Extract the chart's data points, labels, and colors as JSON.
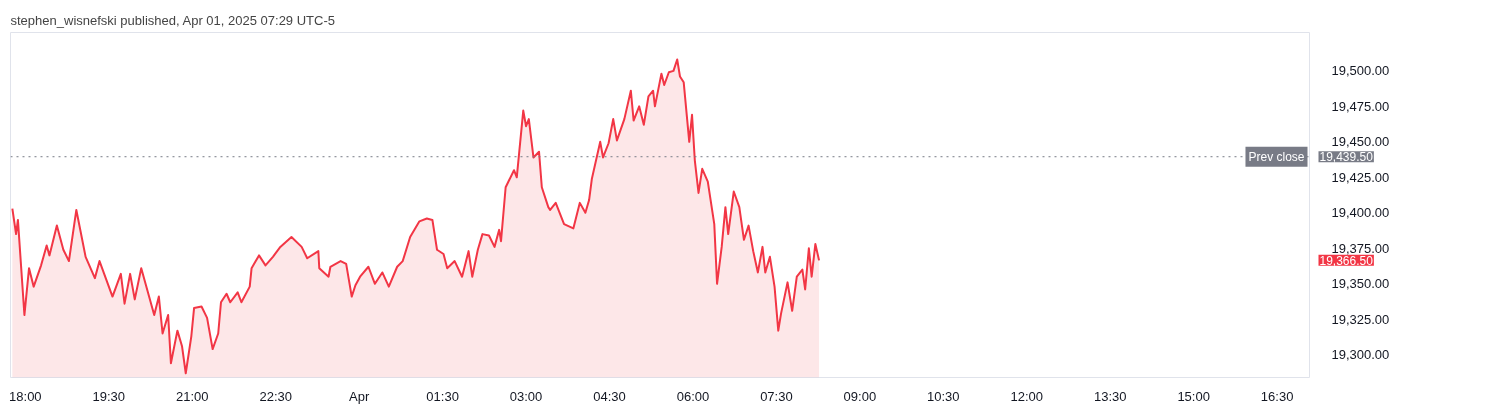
{
  "chart_data": {
    "type": "area",
    "title": "stephen_wisnefski published, Apr 01, 2025 07:29 UTC-5",
    "x": [
      "2025-03-31T17:46",
      "2025-03-31T17:50",
      "2025-03-31T17:52",
      "2025-03-31T17:59",
      "2025-03-31T18:04",
      "2025-03-31T18:09",
      "2025-03-31T18:17",
      "2025-03-31T18:23",
      "2025-03-31T18:26",
      "2025-03-31T18:34",
      "2025-03-31T18:41",
      "2025-03-31T18:47",
      "2025-03-31T18:55",
      "2025-03-31T19:05",
      "2025-03-31T19:15",
      "2025-03-31T19:20",
      "2025-03-31T19:34",
      "2025-03-31T19:43",
      "2025-03-31T19:47",
      "2025-03-31T19:53",
      "2025-03-31T19:58",
      "2025-03-31T20:05",
      "2025-03-31T20:19",
      "2025-03-31T20:24",
      "2025-03-31T20:28",
      "2025-03-31T20:34",
      "2025-03-31T20:37",
      "2025-03-31T20:44",
      "2025-03-31T20:49",
      "2025-03-31T20:53",
      "2025-03-31T20:59",
      "2025-03-31T21:02",
      "2025-03-31T21:10",
      "2025-03-31T21:16",
      "2025-03-31T21:22",
      "2025-03-31T21:28",
      "2025-03-31T21:31",
      "2025-03-31T21:37",
      "2025-03-31T21:41",
      "2025-03-31T21:49",
      "2025-03-31T21:53",
      "2025-03-31T22:02",
      "2025-03-31T22:04",
      "2025-03-31T22:12",
      "2025-03-31T22:19",
      "2025-03-31T22:27",
      "2025-03-31T22:35",
      "2025-03-31T22:47",
      "2025-03-31T22:58",
      "2025-03-31T23:04",
      "2025-03-31T23:16",
      "2025-03-31T23:17",
      "2025-03-31T23:27",
      "2025-03-31T23:29",
      "2025-03-31T23:40",
      "2025-03-31T23:46",
      "2025-03-31T23:52",
      "2025-03-31T23:56",
      "2025-04-01T00:01",
      "2025-04-01T00:10",
      "2025-04-01T00:17",
      "2025-04-01T00:25",
      "2025-04-01T00:32",
      "2025-04-01T00:41",
      "2025-04-01T00:47",
      "2025-04-01T00:55",
      "2025-04-01T01:05",
      "2025-04-01T01:13",
      "2025-04-01T01:19",
      "2025-04-01T01:24",
      "2025-04-01T01:31",
      "2025-04-01T01:35",
      "2025-04-01T01:43",
      "2025-04-01T01:51",
      "2025-04-01T01:58",
      "2025-04-01T02:02",
      "2025-04-01T02:08",
      "2025-04-01T02:13",
      "2025-04-01T02:20",
      "2025-04-01T02:26",
      "2025-04-01T02:31",
      "2025-04-01T02:33",
      "2025-04-01T02:38",
      "2025-04-01T02:47",
      "2025-04-01T02:50",
      "2025-04-01T02:57",
      "2025-04-01T03:00",
      "2025-04-01T03:03",
      "2025-04-01T03:08",
      "2025-04-01T03:14",
      "2025-04-01T03:17",
      "2025-04-01T03:24",
      "2025-04-01T03:26",
      "2025-04-01T03:32",
      "2025-04-01T03:41",
      "2025-04-01T03:51",
      "2025-04-01T03:58",
      "2025-04-01T04:04",
      "2025-04-01T04:08",
      "2025-04-01T04:11",
      "2025-04-01T04:20",
      "2025-04-01T04:23",
      "2025-04-01T04:29",
      "2025-04-01T04:34",
      "2025-04-01T04:38",
      "2025-04-01T04:46",
      "2025-04-01T04:53",
      "2025-04-01T04:56",
      "2025-04-01T05:02",
      "2025-04-01T05:07",
      "2025-04-01T05:12",
      "2025-04-01T05:17",
      "2025-04-01T05:19",
      "2025-04-01T05:26",
      "2025-04-01T05:29",
      "2025-04-01T05:34",
      "2025-04-01T05:39",
      "2025-04-01T05:43",
      "2025-04-01T05:46",
      "2025-04-01T05:50",
      "2025-04-01T05:56",
      "2025-04-01T05:59",
      "2025-04-01T06:02",
      "2025-04-01T06:06",
      "2025-04-01T06:10",
      "2025-04-01T06:16",
      "2025-04-01T06:23",
      "2025-04-01T06:26",
      "2025-04-01T06:31",
      "2025-04-01T06:35",
      "2025-04-01T06:38",
      "2025-04-01T06:44",
      "2025-04-01T06:50",
      "2025-04-01T06:55",
      "2025-04-01T07:00",
      "2025-04-01T07:05",
      "2025-04-01T07:10",
      "2025-04-01T07:15",
      "2025-04-01T07:18",
      "2025-04-01T07:23",
      "2025-04-01T07:28",
      "2025-04-01T07:32",
      "2025-04-01T07:35",
      "2025-04-01T07:42",
      "2025-04-01T07:47",
      "2025-04-01T07:52",
      "2025-04-01T07:58",
      "2025-04-01T08:01",
      "2025-04-01T08:05",
      "2025-04-01T08:08",
      "2025-04-01T08:12",
      "2025-04-01T08:16"
    ],
    "series": [
      {
        "color": "#f23645",
        "values": [
          19403,
          19385,
          19395,
          19328,
          19361,
          19348,
          19363,
          19377,
          19370,
          19391,
          19374,
          19366,
          19402,
          19369,
          19354,
          19366,
          19341,
          19357,
          19336,
          19357,
          19339,
          19361,
          19328,
          19341,
          19315,
          19328,
          19294,
          19317,
          19306,
          19287,
          19313,
          19333,
          19334,
          19326,
          19304,
          19315,
          19337,
          19343,
          19337,
          19344,
          19337,
          19348,
          19361,
          19370,
          19363,
          19369,
          19376,
          19383,
          19376,
          19368,
          19373,
          19361,
          19355,
          19362,
          19366,
          19364,
          19341,
          19349,
          19355,
          19362,
          19350,
          19358,
          19348,
          19362,
          19366,
          19383,
          19394,
          19396,
          19395,
          19374,
          19371,
          19361,
          19366,
          19355,
          19373,
          19355,
          19374,
          19385,
          19384,
          19376,
          19388,
          19380,
          19418,
          19430,
          19425,
          19472,
          19461,
          19466,
          19439,
          19443,
          19418,
          19404,
          19402,
          19407,
          19392,
          19389,
          19407,
          19400,
          19409,
          19424,
          19450,
          19439,
          19449,
          19466,
          19451,
          19466,
          19486,
          19465,
          19475,
          19462,
          19482,
          19486,
          19475,
          19498,
          19490,
          19499,
          19500,
          19508,
          19496,
          19492,
          19450,
          19469,
          19437,
          19414,
          19431,
          19422,
          19392,
          19350,
          19376,
          19404,
          19385,
          19415,
          19404,
          19381,
          19391,
          19373,
          19358,
          19376,
          19358,
          19369,
          19348,
          19317,
          19329,
          19351,
          19331,
          19355,
          19360,
          19346,
          19375,
          19355,
          19378,
          19366.5
        ]
      }
    ],
    "xlim": [
      "2025-03-31T17:44",
      "2025-04-01T17:06"
    ],
    "xticks": [
      {
        "value": "2025-03-31T18:00",
        "label": "18:00"
      },
      {
        "value": "2025-03-31T19:30",
        "label": "19:30"
      },
      {
        "value": "2025-03-31T21:00",
        "label": "21:00"
      },
      {
        "value": "2025-03-31T22:30",
        "label": "22:30"
      },
      {
        "value": "2025-04-01T00:00",
        "label": "Apr"
      },
      {
        "value": "2025-04-01T01:30",
        "label": "01:30"
      },
      {
        "value": "2025-04-01T03:00",
        "label": "03:00"
      },
      {
        "value": "2025-04-01T04:30",
        "label": "04:30"
      },
      {
        "value": "2025-04-01T06:00",
        "label": "06:00"
      },
      {
        "value": "2025-04-01T07:30",
        "label": "07:30"
      },
      {
        "value": "2025-04-01T09:00",
        "label": "09:00"
      },
      {
        "value": "2025-04-01T10:30",
        "label": "10:30"
      },
      {
        "value": "2025-04-01T12:00",
        "label": "12:00"
      },
      {
        "value": "2025-04-01T13:30",
        "label": "13:30"
      },
      {
        "value": "2025-04-01T15:00",
        "label": "15:00"
      },
      {
        "value": "2025-04-01T16:30",
        "label": "16:30"
      }
    ],
    "ylim": [
      19284,
      19527
    ],
    "yticks": [
      {
        "value": 19300,
        "label": "19,300.00"
      },
      {
        "value": 19325,
        "label": "19,325.00"
      },
      {
        "value": 19350,
        "label": "19,350.00"
      },
      {
        "value": 19375,
        "label": "19,375.00"
      },
      {
        "value": 19400,
        "label": "19,400.00"
      },
      {
        "value": 19425,
        "label": "19,425.00"
      },
      {
        "value": 19450,
        "label": "19,450.00"
      },
      {
        "value": 19475,
        "label": "19,475.00"
      },
      {
        "value": 19500,
        "label": "19,500.00"
      }
    ],
    "ref_lines": [
      {
        "axis": "y",
        "value": 19439.5,
        "label": "Prev close",
        "color": "#787b86",
        "line_style": "dotted"
      }
    ],
    "annotations": [
      "19,439.50",
      "19,366.50"
    ],
    "grid": false
  }
}
